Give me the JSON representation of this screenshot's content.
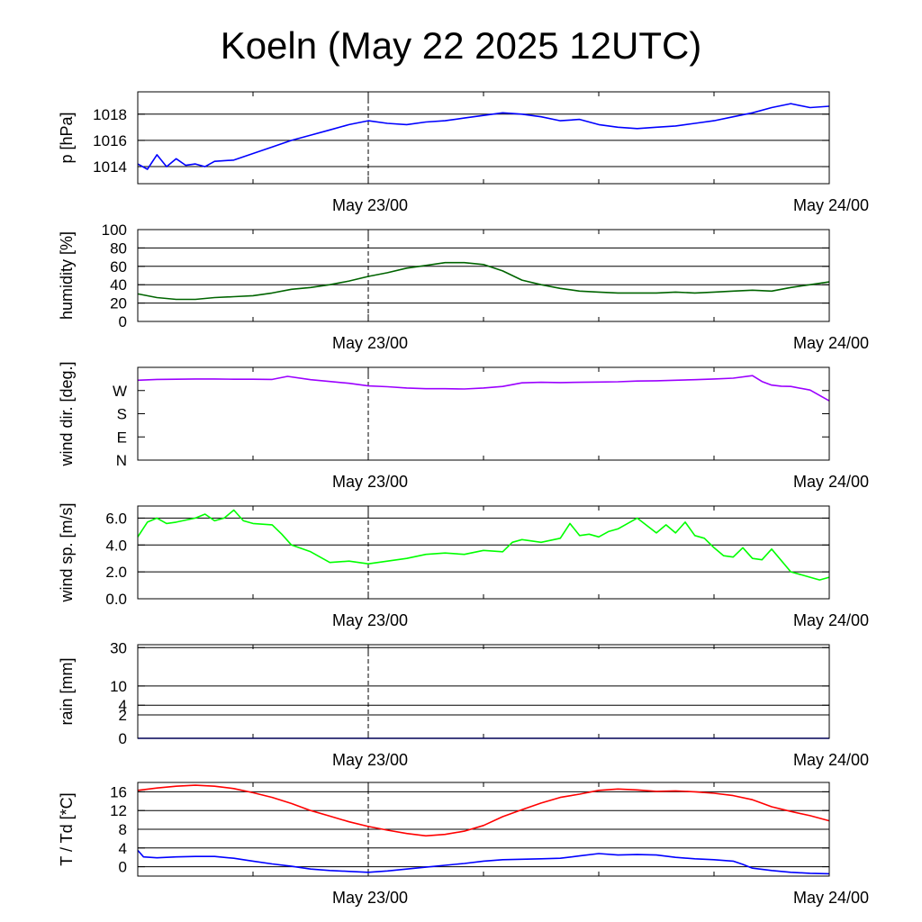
{
  "title": "Koeln (May 22 2025 12UTC)",
  "time_axis": {
    "start": "2025-05-22 12:00 UTC",
    "end": "2025-05-24 00:00 UTC",
    "tick_labels": [
      "May 23/00",
      "May 24/00"
    ]
  },
  "chart_data": [
    {
      "type": "line",
      "ylabel": "p [hPa]",
      "ylim": [
        1012.7,
        1019.7
      ],
      "yticks": [
        1014,
        1016,
        1018
      ],
      "grid": true,
      "series": [
        {
          "color": "#0000ff",
          "x_hours": [
            0,
            0.5,
            1,
            1.5,
            2,
            2.5,
            3,
            3.5,
            4,
            5,
            6,
            7,
            8,
            9,
            10,
            11,
            12,
            13,
            14,
            15,
            16,
            17,
            18,
            19,
            20,
            21,
            22,
            23,
            24,
            25,
            26,
            27,
            28,
            29,
            30,
            31,
            32,
            33,
            34,
            35,
            36
          ],
          "values": [
            1014.2,
            1013.8,
            1014.9,
            1014.0,
            1014.6,
            1014.1,
            1014.2,
            1014.0,
            1014.4,
            1014.5,
            1015.0,
            1015.5,
            1016.0,
            1016.4,
            1016.8,
            1017.2,
            1017.5,
            1017.3,
            1017.2,
            1017.4,
            1017.5,
            1017.7,
            1017.9,
            1018.1,
            1018.0,
            1017.8,
            1017.5,
            1017.6,
            1017.2,
            1017.0,
            1016.9,
            1017.0,
            1017.1,
            1017.3,
            1017.5,
            1017.8,
            1018.1,
            1018.5,
            1018.8,
            1018.5,
            1018.6
          ]
        }
      ]
    },
    {
      "type": "line",
      "ylabel": "humidity [%]",
      "ylim": [
        0,
        100
      ],
      "yticks": [
        0,
        20,
        40,
        60,
        80,
        100
      ],
      "grid": true,
      "series": [
        {
          "color": "#006400",
          "x_hours": [
            0,
            1,
            2,
            3,
            4,
            5,
            6,
            7,
            8,
            9,
            10,
            11,
            12,
            13,
            14,
            15,
            16,
            17,
            18,
            19,
            20,
            21,
            22,
            23,
            24,
            25,
            26,
            27,
            28,
            29,
            30,
            31,
            32,
            33,
            34,
            35,
            36
          ],
          "values": [
            30,
            26,
            24,
            24,
            26,
            27,
            28,
            31,
            35,
            37,
            40,
            44,
            49,
            53,
            58,
            61,
            64,
            64,
            62,
            55,
            45,
            40,
            36,
            33,
            32,
            31,
            31,
            31,
            32,
            31,
            32,
            33,
            34,
            33,
            37,
            40,
            43
          ]
        }
      ]
    },
    {
      "type": "line",
      "ylabel": "wind dir. [deg.]",
      "ylim": [
        0,
        360
      ],
      "yticks": [
        0,
        90,
        180,
        270
      ],
      "ytick_labels": [
        "N",
        "E",
        "S",
        "W"
      ],
      "grid": false,
      "series": [
        {
          "color": "#9b00ff",
          "x_hours": [
            0,
            1,
            2,
            3,
            4,
            5,
            6,
            7,
            7.8,
            9,
            10,
            11,
            12,
            13,
            14,
            15,
            16,
            17,
            18,
            19,
            20,
            21,
            22,
            23,
            24,
            25,
            26,
            27,
            28,
            29,
            30,
            31,
            32,
            32.5,
            33,
            33.5,
            34,
            35,
            36
          ],
          "values": [
            310,
            313,
            314,
            315,
            315,
            314,
            314,
            313,
            325,
            312,
            305,
            298,
            288,
            285,
            280,
            277,
            277,
            276,
            280,
            286,
            300,
            302,
            301,
            302,
            303,
            304,
            307,
            308,
            310,
            312,
            315,
            318,
            328,
            305,
            291,
            287,
            286,
            272,
            230
          ]
        }
      ]
    },
    {
      "type": "line",
      "ylabel": "wind sp. [m/s]",
      "ylim": [
        0,
        6.9
      ],
      "yticks": [
        0.0,
        2.0,
        4.0,
        6.0
      ],
      "ytick_labels": [
        "0.0",
        "2.0",
        "4.0",
        "6.0"
      ],
      "grid": true,
      "series": [
        {
          "color": "#00ff00",
          "x_hours": [
            0,
            0.5,
            1,
            1.5,
            2,
            3,
            3.5,
            4,
            4.5,
            5,
            5.5,
            6,
            7,
            7.5,
            8,
            9,
            10,
            11,
            12,
            12.5,
            13,
            14,
            15,
            16,
            17,
            18,
            19,
            19.5,
            20,
            21,
            22,
            22.5,
            23,
            23.5,
            24,
            24.5,
            25,
            25.5,
            26,
            27,
            27.5,
            28,
            28.5,
            29,
            29.5,
            30,
            30.5,
            31,
            31.5,
            32,
            32.5,
            33,
            34,
            35,
            35.5,
            36
          ],
          "values": [
            4.6,
            5.7,
            6.0,
            5.6,
            5.7,
            6.0,
            6.3,
            5.8,
            6.0,
            6.6,
            5.8,
            5.6,
            5.5,
            4.8,
            4.0,
            3.5,
            2.7,
            2.8,
            2.6,
            2.7,
            2.8,
            3.0,
            3.3,
            3.4,
            3.3,
            3.6,
            3.5,
            4.2,
            4.4,
            4.2,
            4.5,
            5.6,
            4.7,
            4.8,
            4.6,
            5.0,
            5.2,
            5.6,
            6.0,
            4.9,
            5.5,
            4.9,
            5.7,
            4.7,
            4.5,
            3.8,
            3.2,
            3.1,
            3.8,
            3.0,
            2.9,
            3.7,
            2.0,
            1.6,
            1.4,
            1.6
          ]
        }
      ]
    },
    {
      "type": "line",
      "ylabel": "rain [mm]",
      "scale": "sqrt",
      "ylim": [
        0,
        32
      ],
      "yticks": [
        0,
        2,
        4,
        10,
        30
      ],
      "grid": true,
      "series": [
        {
          "color": "#0000ff",
          "x_hours": [
            0,
            36
          ],
          "values": [
            0,
            0
          ]
        }
      ]
    },
    {
      "type": "line",
      "ylabel": "T / Td [*C]",
      "ylim": [
        -2,
        18
      ],
      "yticks": [
        0,
        4,
        8,
        12,
        16
      ],
      "grid": true,
      "series": [
        {
          "color": "#ff0000",
          "x_hours": [
            0,
            1,
            2,
            3,
            4,
            5,
            6,
            7,
            8,
            9,
            10,
            11,
            12,
            13,
            14,
            15,
            16,
            17,
            18,
            19,
            20,
            21,
            22,
            23,
            24,
            25,
            26,
            27,
            28,
            29,
            30,
            31,
            32,
            33,
            34,
            35,
            36
          ],
          "values": [
            16.3,
            16.8,
            17.2,
            17.4,
            17.2,
            16.7,
            15.8,
            14.8,
            13.5,
            12.0,
            10.8,
            9.6,
            8.6,
            7.8,
            7.1,
            6.6,
            6.9,
            7.6,
            8.8,
            10.7,
            12.2,
            13.6,
            14.8,
            15.5,
            16.3,
            16.6,
            16.4,
            16.1,
            16.2,
            16.0,
            15.7,
            15.2,
            14.3,
            12.8,
            11.8,
            10.9,
            9.8
          ]
        },
        {
          "color": "#0000ff",
          "x_hours": [
            0,
            0.3,
            1,
            2,
            3,
            4,
            5,
            6,
            7,
            8,
            9,
            10,
            11,
            12,
            13,
            14,
            15,
            16,
            17,
            18,
            19,
            20,
            21,
            22,
            23,
            24,
            25,
            26,
            27,
            28,
            29,
            30,
            31,
            31.5,
            32,
            33,
            34,
            35,
            36
          ],
          "values": [
            3.5,
            2.1,
            1.9,
            2.1,
            2.2,
            2.2,
            1.8,
            1.2,
            0.6,
            0.1,
            -0.5,
            -0.8,
            -1.0,
            -1.2,
            -0.9,
            -0.5,
            -0.1,
            0.3,
            0.7,
            1.2,
            1.5,
            1.6,
            1.7,
            1.8,
            2.3,
            2.8,
            2.5,
            2.6,
            2.5,
            2.0,
            1.7,
            1.5,
            1.2,
            0.5,
            -0.3,
            -0.8,
            -1.2,
            -1.4,
            -1.5
          ]
        }
      ]
    }
  ]
}
